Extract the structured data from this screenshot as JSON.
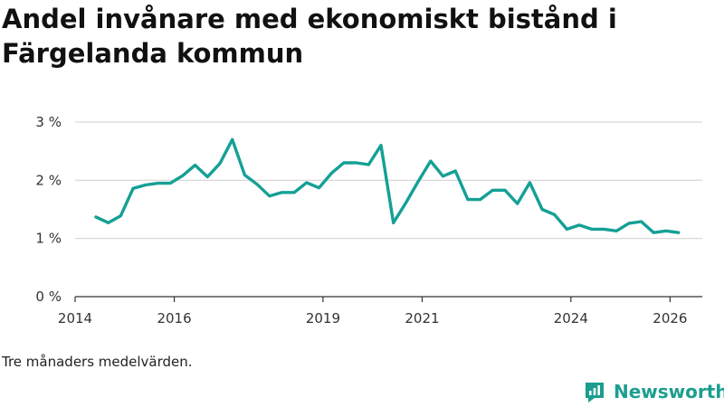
{
  "header": {
    "title": "Andel invånare med ekonomiskt bistånd i Färgelanda kommun"
  },
  "footer": {
    "note": "Tre månaders medelvärden.",
    "brand": "Newsworthy",
    "brand_color": "#1b9e8f"
  },
  "chart_data": {
    "type": "line",
    "title": "Andel invånare med ekonomiskt bistånd i Färgelanda kommun",
    "xlabel": "",
    "ylabel": "",
    "ylim": [
      0,
      3
    ],
    "xlim": [
      2014,
      2026.65
    ],
    "line_color": "#14a095",
    "y_ticks": [
      {
        "value": 0,
        "label": "0 %"
      },
      {
        "value": 1,
        "label": "1 %"
      },
      {
        "value": 2,
        "label": "2 %"
      },
      {
        "value": 3,
        "label": "3 %"
      }
    ],
    "x_ticks": [
      {
        "value": 2014,
        "label": "2014"
      },
      {
        "value": 2016,
        "label": "2016"
      },
      {
        "value": 2019,
        "label": "2019"
      },
      {
        "value": 2021,
        "label": "2021"
      },
      {
        "value": 2024,
        "label": "2024"
      },
      {
        "value": 2026,
        "label": "2026"
      }
    ],
    "series": [
      {
        "name": "Andel invånare med ekonomiskt bistånd",
        "x": [
          2014.42,
          2014.67,
          2014.92,
          2015.17,
          2015.42,
          2015.67,
          2015.92,
          2016.17,
          2016.42,
          2016.67,
          2016.92,
          2017.17,
          2017.42,
          2017.67,
          2017.92,
          2018.17,
          2018.42,
          2018.67,
          2018.92,
          2019.17,
          2019.42,
          2019.67,
          2019.92,
          2020.17,
          2020.42,
          2020.67,
          2020.92,
          2021.17,
          2021.42,
          2021.67,
          2021.92,
          2022.17,
          2022.42,
          2022.67,
          2022.92,
          2023.17,
          2023.42,
          2023.67,
          2023.92,
          2024.17,
          2024.42,
          2024.67,
          2024.92,
          2025.17,
          2025.42,
          2025.67,
          2025.92,
          2026.17
        ],
        "values": [
          1.37,
          1.27,
          1.39,
          1.86,
          1.92,
          1.95,
          1.95,
          2.08,
          2.26,
          2.06,
          2.29,
          2.7,
          2.09,
          1.93,
          1.73,
          1.79,
          1.79,
          1.96,
          1.87,
          2.12,
          2.3,
          2.3,
          2.27,
          2.6,
          1.27,
          1.61,
          1.98,
          2.33,
          2.07,
          2.16,
          1.67,
          1.67,
          1.83,
          1.83,
          1.6,
          1.96,
          1.5,
          1.41,
          1.16,
          1.23,
          1.16,
          1.16,
          1.13,
          1.26,
          1.29,
          1.1,
          1.13,
          1.1
        ]
      }
    ]
  }
}
